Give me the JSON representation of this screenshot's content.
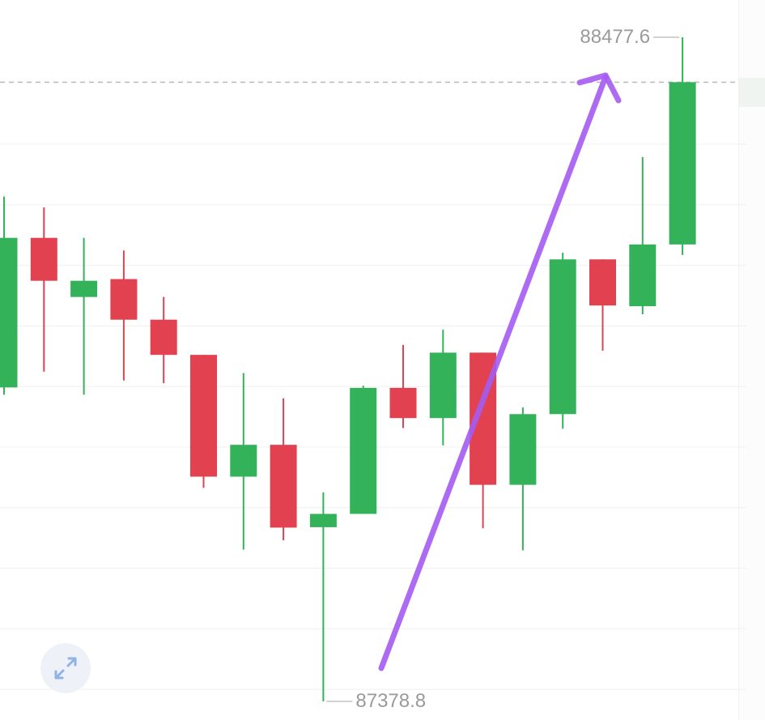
{
  "chart_data": {
    "type": "candlestick",
    "colors": {
      "up": "#34b259",
      "down": "#e2414f",
      "grid": "#f0f0f0",
      "dashed_line": "#b8b8b8",
      "arrow": "#a55cf2",
      "label": "#9a9a9a"
    },
    "grid": true,
    "y_range": [
      87378.8,
      88477.6
    ],
    "dashed_reference": 88403.3,
    "high_label": "88477.6",
    "low_label": "87378.8",
    "candles": [
      {
        "open": 87898.2,
        "close": 88145.7,
        "high": 88214.0,
        "low": 87886.2
      },
      {
        "open": 88145.7,
        "close": 88074.7,
        "high": 88196.0,
        "low": 87924.4
      },
      {
        "open": 88047.9,
        "close": 88074.7,
        "high": 88145.7,
        "low": 87886.2
      },
      {
        "open": 88077.5,
        "close": 88010.3,
        "high": 88124.8,
        "low": 87909.7
      },
      {
        "open": 88010.3,
        "close": 87952.1,
        "high": 88047.9,
        "low": 87905.3
      },
      {
        "open": 87952.1,
        "close": 87750.6,
        "high": 87952.1,
        "low": 87732.1
      },
      {
        "open": 87750.6,
        "close": 87803.3,
        "high": 87922.0,
        "low": 87629.9
      },
      {
        "open": 87803.3,
        "close": 87666.3,
        "high": 87880.3,
        "low": 87645.3
      },
      {
        "open": 87667.0,
        "close": 87689.0,
        "high": 87724.6,
        "low": 87378.8
      },
      {
        "open": 87689.0,
        "close": 87897.5,
        "high": 87901.0,
        "low": 87689.0
      },
      {
        "open": 87897.5,
        "close": 87847.5,
        "high": 87968.6,
        "low": 87831.0
      },
      {
        "open": 87847.5,
        "close": 87955.8,
        "high": 87993.7,
        "low": 87802.4
      },
      {
        "open": 87955.8,
        "close": 87737.1,
        "high": 87955.8,
        "low": 87665.2
      },
      {
        "open": 87737.1,
        "close": 87854.1,
        "high": 87865.1,
        "low": 87628.7
      },
      {
        "open": 87854.1,
        "close": 88110.1,
        "high": 88121.1,
        "low": 87829.9
      },
      {
        "open": 88110.1,
        "close": 88033.8,
        "high": 88110.1,
        "low": 87958.9
      },
      {
        "open": 88032.6,
        "close": 88134.8,
        "high": 88279.2,
        "low": 88019.4
      },
      {
        "open": 88134.8,
        "close": 88403.3,
        "high": 88477.6,
        "low": 88117.3
      }
    ],
    "annotation": "arrow-up"
  },
  "controls": {
    "expand_icon": "expand-icon"
  }
}
